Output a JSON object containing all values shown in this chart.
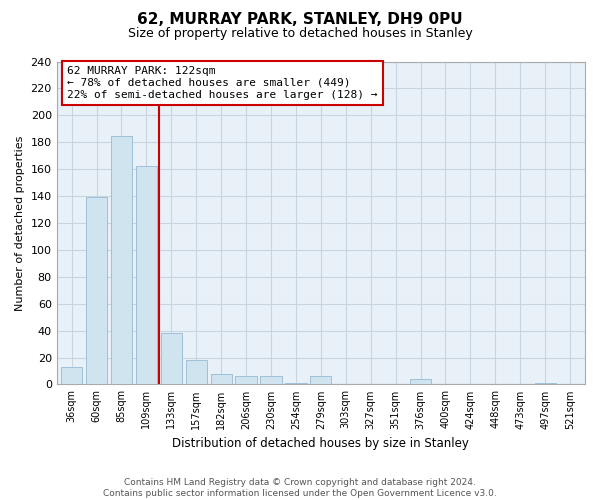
{
  "title": "62, MURRAY PARK, STANLEY, DH9 0PU",
  "subtitle": "Size of property relative to detached houses in Stanley",
  "xlabel": "Distribution of detached houses by size in Stanley",
  "ylabel": "Number of detached properties",
  "categories": [
    "36sqm",
    "60sqm",
    "85sqm",
    "109sqm",
    "133sqm",
    "157sqm",
    "182sqm",
    "206sqm",
    "230sqm",
    "254sqm",
    "279sqm",
    "303sqm",
    "327sqm",
    "351sqm",
    "376sqm",
    "400sqm",
    "424sqm",
    "448sqm",
    "473sqm",
    "497sqm",
    "521sqm"
  ],
  "values": [
    13,
    139,
    185,
    162,
    38,
    18,
    8,
    6,
    6,
    1,
    6,
    0,
    0,
    0,
    4,
    0,
    0,
    0,
    0,
    1,
    0
  ],
  "bar_color": "#d0e4f0",
  "bar_edge_color": "#a0c0d8",
  "vline_x_index": 3.5,
  "vline_color": "#cc0000",
  "annotation_title": "62 MURRAY PARK: 122sqm",
  "annotation_line1": "← 78% of detached houses are smaller (449)",
  "annotation_line2": "22% of semi-detached houses are larger (128) →",
  "annotation_box_color": "#ffffff",
  "annotation_box_edge": "#cc0000",
  "ylim": [
    0,
    240
  ],
  "yticks": [
    0,
    20,
    40,
    60,
    80,
    100,
    120,
    140,
    160,
    180,
    200,
    220,
    240
  ],
  "footer_line1": "Contains HM Land Registry data © Crown copyright and database right 2024.",
  "footer_line2": "Contains public sector information licensed under the Open Government Licence v3.0.",
  "background_color": "#ffffff",
  "plot_bg_color": "#e8f0f8",
  "grid_color": "#c8d4e0"
}
